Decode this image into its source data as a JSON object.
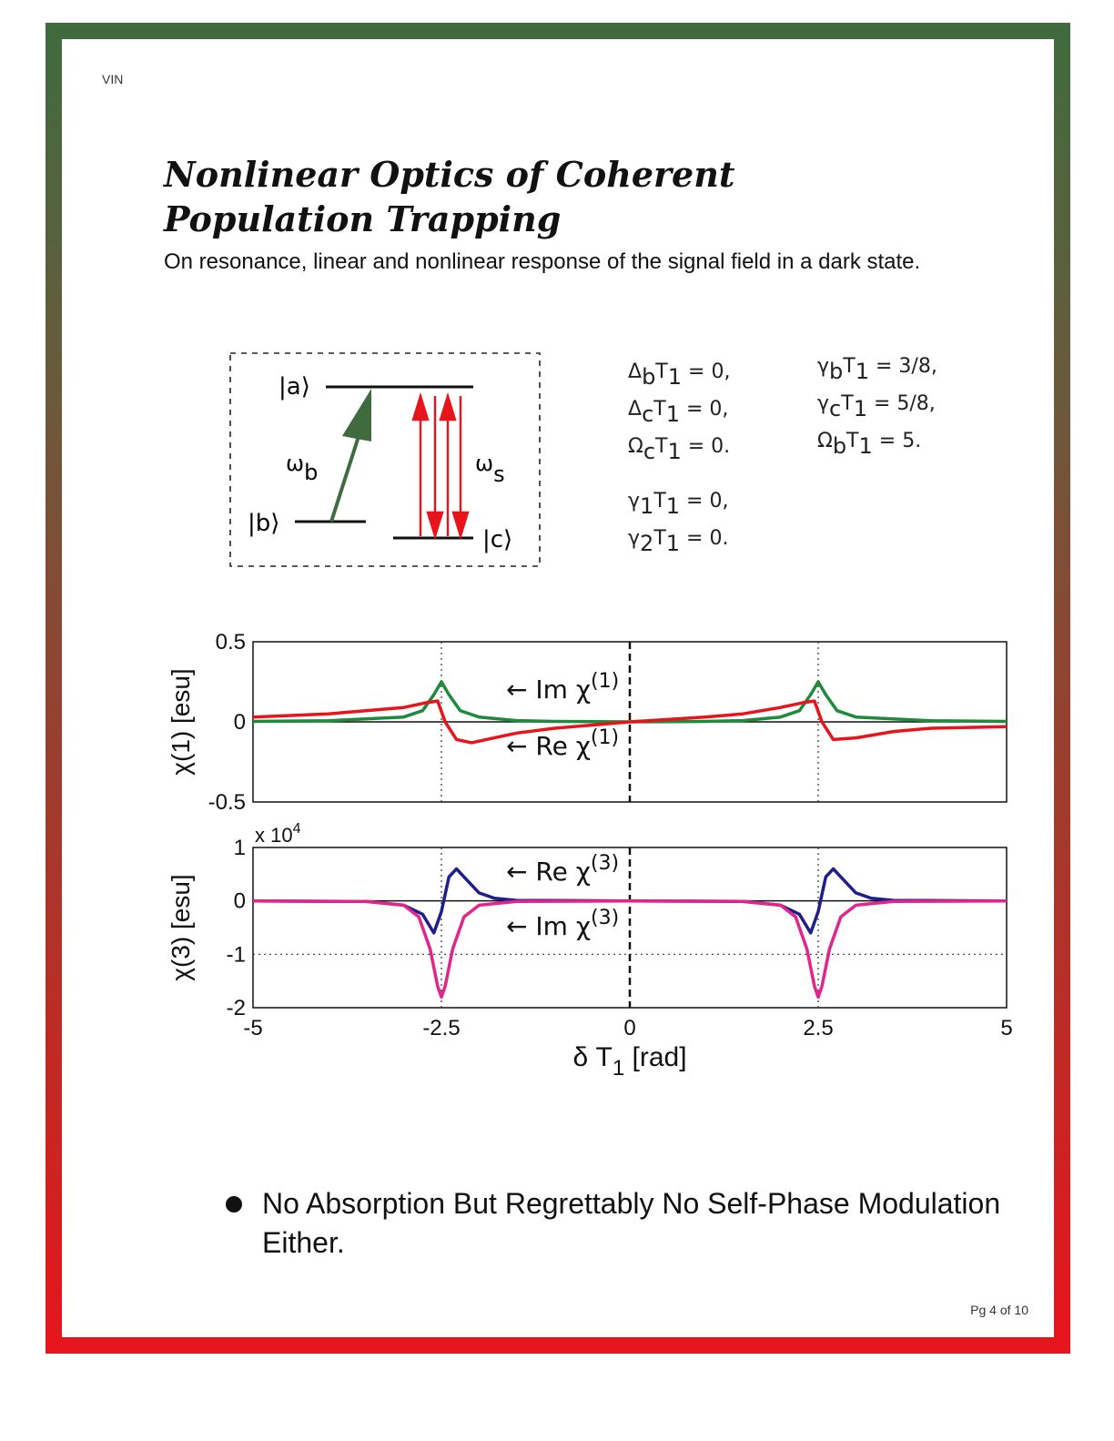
{
  "header": {
    "tag": "VIN"
  },
  "title": {
    "line1": "Nonlinear Optics of Coherent",
    "line2": "Population Trapping"
  },
  "subtitle": "On resonance, linear and nonlinear response of the signal field in a dark state.",
  "level_diagram": {
    "state_a": "|a⟩",
    "state_b": "|b⟩",
    "state_c": "|c⟩",
    "omega_b": "ω",
    "omega_b_sub": "b",
    "omega_s": "ω",
    "omega_s_sub": "s",
    "colors": {
      "pump": "#3f6b3e",
      "signal": "#e8141c"
    }
  },
  "parameters": {
    "left": [
      {
        "main": "Δ",
        "sub": "b",
        "main2": "T",
        "sub2": "1",
        "value": " = 0,"
      },
      {
        "main": "Δ",
        "sub": "c",
        "main2": "T",
        "sub2": "1",
        "value": " = 0,"
      },
      {
        "main": "Ω",
        "sub": "c",
        "main2": "T",
        "sub2": "1",
        "value": " = 0."
      }
    ],
    "right": [
      {
        "main": "γ",
        "sub": "b",
        "main2": "T",
        "sub2": "1",
        "value": " = 3/8,"
      },
      {
        "main": "γ",
        "sub": "c",
        "main2": "T",
        "sub2": "1",
        "value": " = 5/8,"
      },
      {
        "main": "Ω",
        "sub": "b",
        "main2": "T",
        "sub2": "1",
        "value": " = 5."
      }
    ],
    "bottom": [
      {
        "main": "γ",
        "sub": "1",
        "main2": "T",
        "sub2": "1",
        "value": " = 0,"
      },
      {
        "main": "γ",
        "sub": "2",
        "main2": "T",
        "sub2": "1",
        "value": " = 0."
      }
    ]
  },
  "chart_data": [
    {
      "type": "line",
      "ylabel": "χ(1) [esu]",
      "ylim": [
        -0.5,
        0.5
      ],
      "xlim": [
        -5,
        5
      ],
      "yticks": [
        "0.5",
        "0",
        "-0.5"
      ],
      "series": [
        {
          "name": "Im χ(1)",
          "color": "#1e8a3c",
          "x": [
            -5,
            -4,
            -3,
            -2.75,
            -2.6,
            -2.5,
            -2.4,
            -2.25,
            -2,
            -1.5,
            -1,
            0,
            1,
            1.5,
            2,
            2.25,
            2.4,
            2.5,
            2.6,
            2.75,
            3,
            4,
            5
          ],
          "y": [
            0.003,
            0.007,
            0.03,
            0.07,
            0.17,
            0.25,
            0.17,
            0.07,
            0.03,
            0.008,
            0.003,
            0,
            0.003,
            0.008,
            0.03,
            0.07,
            0.17,
            0.25,
            0.17,
            0.07,
            0.03,
            0.007,
            0.003
          ]
        },
        {
          "name": "Re χ(1)",
          "color": "#e8141c",
          "x": [
            -5,
            -4,
            -3,
            -2.7,
            -2.55,
            -2.45,
            -2.3,
            -2.1,
            -1.8,
            -1.5,
            -1,
            0,
            1,
            1.5,
            2,
            2.3,
            2.45,
            2.55,
            2.7,
            3,
            3.5,
            4,
            5
          ],
          "y": [
            0.03,
            0.05,
            0.09,
            0.12,
            0.13,
            0.0,
            -0.11,
            -0.13,
            -0.1,
            -0.07,
            -0.04,
            0,
            0.03,
            0.05,
            0.09,
            0.12,
            0.13,
            0.0,
            -0.11,
            -0.1,
            -0.06,
            -0.04,
            -0.03
          ]
        }
      ],
      "annotations": [
        {
          "arrow": "←",
          "part": "Im",
          "sym": "χ",
          "sup": "(1)"
        },
        {
          "arrow": "←",
          "part": "Re",
          "sym": "χ",
          "sup": "(1)"
        }
      ]
    },
    {
      "type": "line",
      "ylabel": "χ(3) [esu]",
      "scale_label": "x 10",
      "scale_exp": "4",
      "ylim": [
        -2,
        1
      ],
      "xlim": [
        -5,
        5
      ],
      "yticks": [
        "1",
        "0",
        "-1",
        "-2"
      ],
      "xticks": [
        "-5",
        "-2.5",
        "0",
        "2.5",
        "5"
      ],
      "xlabel": "δ T",
      "xlabel_sub": "1",
      "xlabel_unit": "[rad]",
      "series": [
        {
          "name": "Re χ(3)",
          "color": "#1e1e8c",
          "x": [
            -5,
            -3.5,
            -3,
            -2.75,
            -2.6,
            -2.5,
            -2.4,
            -2.3,
            -2.2,
            -2,
            -1.8,
            -1.5,
            0,
            1.5,
            2,
            2.25,
            2.4,
            2.5,
            2.6,
            2.7,
            2.8,
            3,
            3.2,
            3.5,
            5
          ],
          "y": [
            0,
            -0.01,
            -0.08,
            -0.25,
            -0.6,
            -0.2,
            0.45,
            0.6,
            0.45,
            0.15,
            0.05,
            0.01,
            0,
            -0.01,
            -0.08,
            -0.25,
            -0.6,
            -0.2,
            0.45,
            0.6,
            0.45,
            0.15,
            0.05,
            0.01,
            0
          ]
        },
        {
          "name": "Im χ(3)",
          "color": "#e0258c",
          "x": [
            -5,
            -3.5,
            -3,
            -2.8,
            -2.65,
            -2.55,
            -2.5,
            -2.45,
            -2.35,
            -2.2,
            -2,
            -1.5,
            0,
            1.5,
            2,
            2.2,
            2.35,
            2.45,
            2.5,
            2.55,
            2.65,
            2.8,
            3,
            3.5,
            5
          ],
          "y": [
            0,
            -0.01,
            -0.08,
            -0.3,
            -0.9,
            -1.6,
            -1.8,
            -1.6,
            -0.9,
            -0.3,
            -0.08,
            -0.01,
            0,
            -0.01,
            -0.08,
            -0.3,
            -0.9,
            -1.6,
            -1.8,
            -1.6,
            -0.9,
            -0.3,
            -0.08,
            -0.01,
            0
          ]
        }
      ],
      "annotations": [
        {
          "arrow": "←",
          "part": "Re",
          "sym": "χ",
          "sup": "(3)"
        },
        {
          "arrow": "←",
          "part": "Im",
          "sym": "χ",
          "sup": "(3)"
        }
      ]
    }
  ],
  "bullet": "No Absorption But Regrettably No Self-Phase Modulation Either.",
  "footer": {
    "page": "Pg 4 of 10"
  }
}
